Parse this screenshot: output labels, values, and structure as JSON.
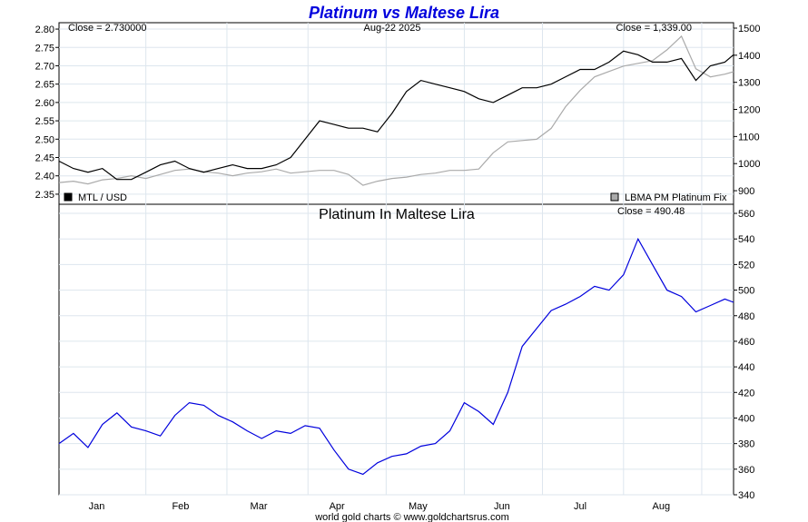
{
  "title": "Platinum vs Maltese Lira",
  "footer": "world gold charts © www.goldchartsrus.com",
  "colors": {
    "title": "#0000dd",
    "mtl_line": "#000000",
    "pt_line": "#aaaaaa",
    "ratio_line": "#0000dd"
  },
  "chart_data": [
    {
      "type": "line",
      "panel": "top",
      "left_close_label": "Close = 2.730000",
      "date_label": "Aug-22  2025",
      "right_close_label": "Close = 1,339.00",
      "x_ticks": [
        "Jan",
        "Feb",
        "Mar",
        "Apr",
        "May",
        "Jun",
        "Jul",
        "Aug"
      ],
      "y_left_ticks": [
        "2.80",
        "2.75",
        "2.70",
        "2.65",
        "2.60",
        "2.55",
        "2.50",
        "2.45",
        "2.40",
        "2.35"
      ],
      "y_right_ticks": [
        "1500",
        "1400",
        "1300",
        "1200",
        "1100",
        "1000",
        "900"
      ],
      "ylim_left": [
        2.33,
        2.81
      ],
      "ylim_right": [
        860,
        1510
      ],
      "grid": true,
      "legend_position": "bottom",
      "series": [
        {
          "name": "MTL / USD",
          "axis": "left",
          "x": [
            0,
            5,
            10,
            15,
            20,
            25,
            30,
            35,
            40,
            45,
            50,
            55,
            60,
            65,
            70,
            75,
            80,
            85,
            90,
            95,
            100,
            105,
            110,
            115,
            120,
            125,
            130,
            135,
            140,
            145,
            150,
            155,
            160,
            165,
            170,
            175,
            180,
            185,
            190,
            195,
            200,
            205,
            210,
            215,
            220,
            225,
            230,
            233
          ],
          "values": [
            2.44,
            2.42,
            2.41,
            2.42,
            2.39,
            2.39,
            2.41,
            2.43,
            2.44,
            2.42,
            2.41,
            2.42,
            2.43,
            2.42,
            2.42,
            2.43,
            2.45,
            2.5,
            2.55,
            2.54,
            2.53,
            2.53,
            2.52,
            2.57,
            2.63,
            2.66,
            2.65,
            2.64,
            2.63,
            2.61,
            2.6,
            2.62,
            2.64,
            2.64,
            2.65,
            2.67,
            2.69,
            2.69,
            2.71,
            2.74,
            2.73,
            2.71,
            2.71,
            2.72,
            2.66,
            2.7,
            2.71,
            2.73
          ]
        },
        {
          "name": "LBMA PM Platinum Fix",
          "axis": "right",
          "x": [
            0,
            5,
            10,
            15,
            20,
            25,
            30,
            35,
            40,
            45,
            50,
            55,
            60,
            65,
            70,
            75,
            80,
            85,
            90,
            95,
            100,
            105,
            110,
            115,
            120,
            125,
            130,
            135,
            140,
            145,
            150,
            155,
            160,
            165,
            170,
            175,
            180,
            185,
            190,
            195,
            200,
            205,
            210,
            215,
            220,
            225,
            230,
            233
          ],
          "values": [
            930,
            935,
            925,
            940,
            945,
            955,
            945,
            960,
            975,
            980,
            970,
            965,
            955,
            965,
            970,
            980,
            965,
            970,
            975,
            975,
            960,
            920,
            935,
            945,
            950,
            960,
            965,
            975,
            975,
            980,
            1040,
            1080,
            1085,
            1090,
            1130,
            1210,
            1270,
            1320,
            1340,
            1360,
            1370,
            1380,
            1420,
            1470,
            1350,
            1320,
            1330,
            1339
          ]
        }
      ]
    },
    {
      "type": "line",
      "panel": "bottom",
      "subtitle": "Platinum In Maltese Lira",
      "close_label": "Close = 490.48",
      "x_ticks": [
        "Jan",
        "Feb",
        "Mar",
        "Apr",
        "May",
        "Jun",
        "Jul",
        "Aug"
      ],
      "y_ticks": [
        "560",
        "540",
        "520",
        "500",
        "480",
        "460",
        "440",
        "420",
        "400",
        "380",
        "360",
        "340"
      ],
      "ylim": [
        340,
        565
      ],
      "grid": true,
      "series": [
        {
          "name": "",
          "x": [
            0,
            5,
            10,
            15,
            20,
            25,
            30,
            35,
            40,
            45,
            50,
            55,
            60,
            65,
            70,
            75,
            80,
            85,
            90,
            95,
            100,
            105,
            110,
            115,
            120,
            125,
            130,
            135,
            140,
            145,
            150,
            155,
            160,
            165,
            170,
            175,
            180,
            185,
            190,
            195,
            200,
            205,
            210,
            215,
            220,
            225,
            230,
            233
          ],
          "values": [
            380,
            388,
            377,
            395,
            404,
            393,
            390,
            386,
            402,
            412,
            410,
            402,
            397,
            390,
            384,
            390,
            388,
            394,
            392,
            375,
            360,
            356,
            365,
            370,
            372,
            378,
            380,
            390,
            412,
            405,
            395,
            420,
            456,
            470,
            484,
            489,
            495,
            503,
            500,
            512,
            540,
            520,
            500,
            495,
            483,
            488,
            493,
            490.48
          ]
        }
      ]
    }
  ]
}
